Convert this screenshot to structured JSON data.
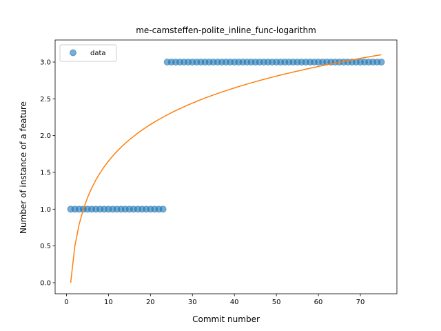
{
  "chart_data": {
    "type": "scatter",
    "title": "me-camsteffen-polite_inline_func-logarithm",
    "xlabel": "Commit number",
    "ylabel": "Number of instance of a feature",
    "xlim": [
      -2.7,
      78.7
    ],
    "ylim": [
      -0.15,
      3.3
    ],
    "xticks": [
      0,
      10,
      20,
      30,
      40,
      50,
      60,
      70
    ],
    "yticks": [
      0.0,
      0.5,
      1.0,
      1.5,
      2.0,
      2.5,
      3.0
    ],
    "ytick_labels": [
      "0.0",
      "0.5",
      "1.0",
      "1.5",
      "2.0",
      "2.5",
      "3.0"
    ],
    "grid": false,
    "legend": {
      "placement": "top-left",
      "entries": [
        "data"
      ]
    },
    "series": [
      {
        "name": "data",
        "kind": "scatter",
        "color": "#1f77b4",
        "segments": [
          {
            "x_start": 1,
            "x_end": 23,
            "y": 1
          },
          {
            "x_start": 24,
            "x_end": 75,
            "y": 3
          }
        ]
      },
      {
        "kind": "line",
        "color": "#ff7f0e",
        "fit": "logarithmic",
        "a": 0.718,
        "b": 0.0,
        "x_range": [
          1,
          75
        ]
      }
    ]
  }
}
